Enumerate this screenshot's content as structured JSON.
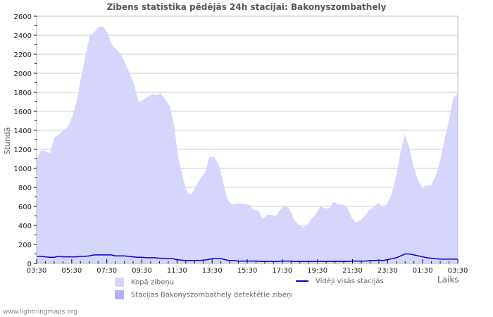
{
  "title": "Zibens statistika pēdējās 24h stacijai: Bakonyszombathely",
  "footer": "www.lightningmaps.org",
  "colors": {
    "total_fill": "#d6d6fc",
    "station_fill": "#b0b0f8",
    "avg_line": "#0000dd",
    "grid": "#cccccc",
    "axis": "#bbbbbb"
  },
  "legend": {
    "total": "Kopā zibeņu",
    "station": "Stacijas Bakonyszombathely detektētie zibeņi",
    "average": "Vidēji visās stacijās"
  },
  "chart_data": {
    "type": "area",
    "title": "Zibens statistika pēdējās 24h stacijai: Bakonyszombathely",
    "xlabel": "Laiks",
    "ylabel": "Stundā",
    "ylim": [
      0,
      2600
    ],
    "yticks": [
      0,
      200,
      400,
      600,
      800,
      1000,
      1200,
      1400,
      1600,
      1800,
      2000,
      2200,
      2400,
      2600
    ],
    "xticks": [
      "03:30",
      "05:30",
      "07:30",
      "09:30",
      "11:30",
      "13:30",
      "15:30",
      "17:30",
      "19:30",
      "21:30",
      "23:30",
      "01:30",
      "03:30"
    ],
    "grid": true,
    "legend_position": "bottom",
    "x_step_minutes": 15,
    "series": [
      {
        "name": "Kopā zibeņu",
        "style": "area",
        "values": [
          1100,
          1190,
          1180,
          1160,
          1320,
          1360,
          1400,
          1430,
          1540,
          1700,
          1950,
          2180,
          2390,
          2430,
          2490,
          2490,
          2420,
          2300,
          2250,
          2200,
          2100,
          2000,
          1880,
          1700,
          1720,
          1750,
          1780,
          1770,
          1790,
          1720,
          1660,
          1450,
          1100,
          900,
          740,
          730,
          820,
          900,
          960,
          1120,
          1120,
          1050,
          870,
          680,
          620,
          630,
          630,
          620,
          620,
          560,
          560,
          470,
          510,
          510,
          500,
          570,
          610,
          580,
          470,
          410,
          380,
          400,
          470,
          520,
          600,
          580,
          580,
          650,
          620,
          620,
          600,
          490,
          430,
          450,
          500,
          560,
          590,
          640,
          600,
          620,
          720,
          900,
          1150,
          1360,
          1230,
          1020,
          880,
          800,
          820,
          820,
          920,
          1080,
          1300,
          1500,
          1740,
          1790
        ]
      },
      {
        "name": "Stacijas Bakonyszombathely detektētie zibeņi",
        "style": "area",
        "values": []
      },
      {
        "name": "Vidēji visās stacijās",
        "style": "line",
        "values": [
          75,
          75,
          70,
          65,
          65,
          75,
          70,
          70,
          70,
          70,
          75,
          75,
          80,
          90,
          90,
          90,
          90,
          90,
          80,
          80,
          80,
          75,
          70,
          65,
          65,
          60,
          60,
          60,
          55,
          55,
          50,
          50,
          40,
          35,
          30,
          30,
          30,
          30,
          35,
          40,
          50,
          50,
          50,
          40,
          30,
          30,
          25,
          25,
          25,
          25,
          25,
          20,
          20,
          20,
          20,
          20,
          25,
          25,
          25,
          20,
          20,
          20,
          20,
          20,
          20,
          20,
          20,
          20,
          20,
          20,
          20,
          20,
          25,
          25,
          25,
          25,
          30,
          30,
          35,
          30,
          40,
          50,
          60,
          80,
          100,
          100,
          90,
          80,
          70,
          60,
          55,
          50,
          45,
          45,
          45,
          45,
          45
        ]
      }
    ]
  }
}
